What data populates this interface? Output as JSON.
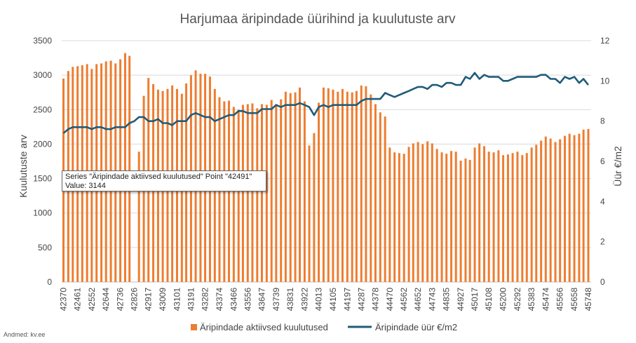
{
  "chart_data": {
    "type": "bar+line",
    "title": "Harjumaa äripindade üürihind ja kuulutuste arv",
    "ylabel_left": "Kuulutuste arv",
    "ylabel_right": "Üür €/m2",
    "ylim_left": [
      0,
      3500
    ],
    "yticks_left": [
      0,
      500,
      1000,
      1500,
      2000,
      2500,
      3000,
      3500
    ],
    "ylim_right": [
      0,
      12
    ],
    "yticks_right": [
      0,
      2,
      4,
      6,
      8,
      10,
      12
    ],
    "grid": true,
    "legend_position": "bottom",
    "x_tick_labels": [
      "42370",
      "42461",
      "42552",
      "42644",
      "42736",
      "42826",
      "42917",
      "43009",
      "43101",
      "43191",
      "43282",
      "43374",
      "43466",
      "43556",
      "43647",
      "43739",
      "43831",
      "43922",
      "44013",
      "44105",
      "44197",
      "44287",
      "44378",
      "44470",
      "44562",
      "44652",
      "44743",
      "44835",
      "44927",
      "45017",
      "45108",
      "45200",
      "45292",
      "45383",
      "45474",
      "45566",
      "45658",
      "45748"
    ],
    "x": [
      42370,
      42401,
      42430,
      42461,
      42491,
      42522,
      42552,
      42583,
      42614,
      42644,
      42675,
      42705,
      42736,
      42767,
      42795,
      42826,
      42856,
      42887,
      42917,
      42948,
      42979,
      43009,
      43040,
      43070,
      43101,
      43132,
      43160,
      43191,
      43221,
      43252,
      43282,
      43313,
      43344,
      43374,
      43405,
      43435,
      43466,
      43497,
      43525,
      43556,
      43586,
      43617,
      43647,
      43678,
      43709,
      43739,
      43770,
      43800,
      43831,
      43862,
      43891,
      43922,
      43952,
      43983,
      44013,
      44044,
      44075,
      44105,
      44136,
      44166,
      44197,
      44228,
      44256,
      44287,
      44317,
      44348,
      44378,
      44409,
      44440,
      44470,
      44501,
      44531,
      44562,
      44593,
      44621,
      44652,
      44682,
      44713,
      44743,
      44774,
      44805,
      44835,
      44866,
      44896,
      44927,
      44958,
      44986,
      45017,
      45047,
      45078,
      45108,
      45139,
      45170,
      45200,
      45231,
      45261,
      45292,
      45323,
      45352,
      45383,
      45413,
      45444,
      45474,
      45505,
      45536,
      45566,
      45597,
      45627,
      45658,
      45689,
      45717,
      45748
    ],
    "series": [
      {
        "name": "Äripindade aktiivsed kuulutused",
        "kind": "bar",
        "color": "#ED7D31",
        "values": [
          2950,
          3060,
          3120,
          3130,
          3144,
          3160,
          3090,
          3160,
          3170,
          3200,
          3210,
          3170,
          3230,
          3320,
          3280,
          null,
          1890,
          2700,
          2960,
          2870,
          2790,
          2770,
          2800,
          2850,
          2800,
          2730,
          2880,
          3000,
          3070,
          3020,
          3020,
          2980,
          2800,
          2680,
          2620,
          2630,
          2540,
          2500,
          2570,
          2580,
          2590,
          2520,
          2580,
          2570,
          2640,
          2580,
          2650,
          2760,
          2740,
          2750,
          2820,
          2620,
          1980,
          2160,
          2600,
          2820,
          2810,
          2790,
          2760,
          2800,
          2760,
          2750,
          2770,
          2850,
          2840,
          2720,
          2580,
          2460,
          2400,
          1950,
          1880,
          1870,
          1860,
          1960,
          2010,
          2030,
          2000,
          2040,
          2010,
          1930,
          1880,
          1860,
          1900,
          1890,
          1760,
          1790,
          1770,
          1950,
          2010,
          1970,
          1890,
          1880,
          1910,
          1840,
          1850,
          1870,
          1890,
          1840,
          1870,
          1950,
          1990,
          2050,
          2110,
          2080,
          2030,
          2070,
          2120,
          2150,
          2130,
          2150,
          2210,
          2220
        ]
      },
      {
        "name": "Äripindade üür €/m2",
        "kind": "line",
        "axis": "right",
        "color": "#1F5C7A",
        "values": [
          7.4,
          7.6,
          7.7,
          7.7,
          7.7,
          7.7,
          7.6,
          7.7,
          7.7,
          7.6,
          7.6,
          7.7,
          7.7,
          7.7,
          7.9,
          8.0,
          8.2,
          8.2,
          8.0,
          8.0,
          8.1,
          7.9,
          7.9,
          7.8,
          8.0,
          8.0,
          8.0,
          8.3,
          8.4,
          8.3,
          8.2,
          8.2,
          8.0,
          8.1,
          8.2,
          8.3,
          8.3,
          8.5,
          8.5,
          8.4,
          8.4,
          8.4,
          8.6,
          8.6,
          8.6,
          8.8,
          8.7,
          8.8,
          8.8,
          8.8,
          8.9,
          8.8,
          8.7,
          8.3,
          8.7,
          8.8,
          8.7,
          8.8,
          8.8,
          8.8,
          8.8,
          8.8,
          8.8,
          9.0,
          9.1,
          9.1,
          9.1,
          9.1,
          9.4,
          9.3,
          9.2,
          9.3,
          9.4,
          9.5,
          9.6,
          9.7,
          9.7,
          9.6,
          9.8,
          9.8,
          9.7,
          9.9,
          9.9,
          9.8,
          9.8,
          10.2,
          10.1,
          10.4,
          10.1,
          10.3,
          10.2,
          10.2,
          10.2,
          10.0,
          10.0,
          10.1,
          10.2,
          10.2,
          10.2,
          10.2,
          10.2,
          10.3,
          10.3,
          10.1,
          10.1,
          9.9,
          10.2,
          10.1,
          10.2,
          9.9,
          10.1,
          9.8
        ]
      }
    ],
    "tooltip": {
      "line1": "Series \"Äripindade aktiivsed kuulutused\" Point \"42491\"",
      "line2": "Value: 3144"
    }
  },
  "watermark": "Andmed: kv.ee"
}
